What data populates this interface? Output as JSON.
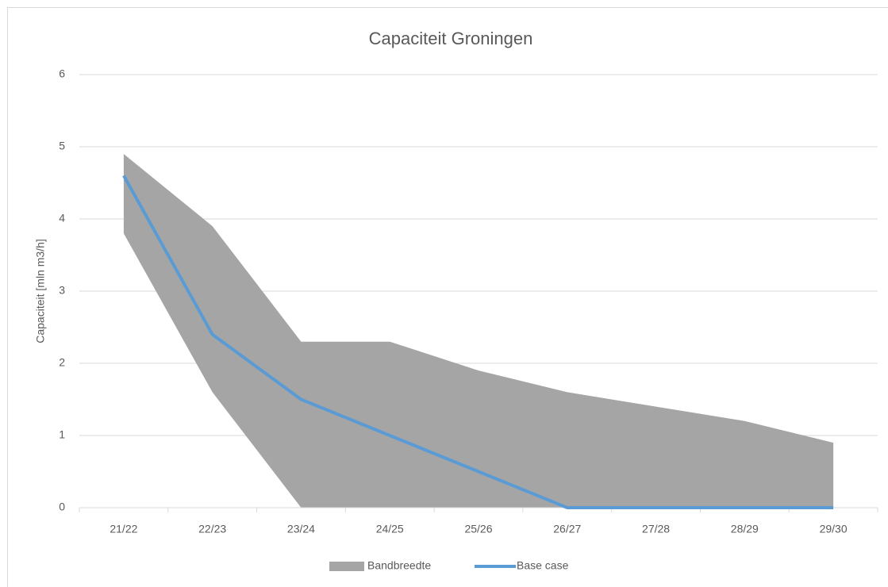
{
  "chart_data": {
    "type": "range-area-line",
    "title": "Capaciteit Groningen",
    "y_label": "Capaciteit [mln m3/h]",
    "categories": [
      "21/22",
      "22/23",
      "23/24",
      "24/25",
      "25/26",
      "26/27",
      "27/28",
      "28/29",
      "29/30"
    ],
    "band": {
      "name": "Bandbreedte",
      "color": "#a5a5a5",
      "low": [
        3.8,
        1.6,
        0,
        0,
        0,
        0,
        0,
        0,
        0
      ],
      "high": [
        4.9,
        3.9,
        2.3,
        2.3,
        1.9,
        1.6,
        1.4,
        1.2,
        0.9
      ]
    },
    "series": [
      {
        "name": "Base case",
        "color": "#5b9bd5",
        "values": [
          4.6,
          2.4,
          1.5,
          1.0,
          0.5,
          0,
          0,
          0,
          0
        ]
      }
    ],
    "ylim": [
      0,
      6
    ],
    "yticks": [
      0,
      1,
      2,
      3,
      4,
      5,
      6
    ],
    "grid": true,
    "legend": "bottom"
  }
}
